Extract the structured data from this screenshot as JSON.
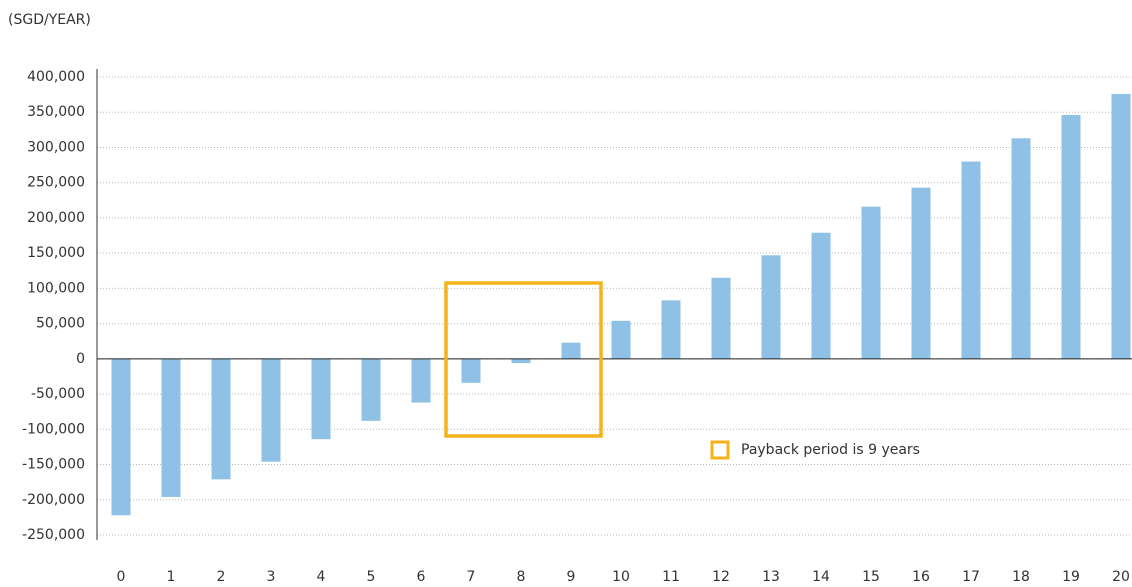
{
  "chart_data": {
    "type": "bar",
    "axis_title": "(SGD/YEAR)",
    "categories": [
      "0",
      "1",
      "2",
      "3",
      "4",
      "5",
      "6",
      "7",
      "8",
      "9",
      "10",
      "11",
      "12",
      "13",
      "14",
      "15",
      "16",
      "17",
      "18",
      "19",
      "20"
    ],
    "values": [
      -222000,
      -196000,
      -171000,
      -146000,
      -114000,
      -88000,
      -62000,
      -34000,
      -6000,
      23000,
      54000,
      83000,
      115000,
      147000,
      179000,
      216000,
      243000,
      280000,
      313000,
      346000,
      376000
    ],
    "color": "#8fc1e6",
    "ylim": [
      -250000,
      400000
    ],
    "yticks": [
      {
        "value": -250000,
        "label": "-250,000"
      },
      {
        "value": -200000,
        "label": "-200,000"
      },
      {
        "value": -150000,
        "label": "-150,000"
      },
      {
        "value": -100000,
        "label": "-100,000"
      },
      {
        "value": -50000,
        "label": "-50,000"
      },
      0,
      {
        "value": 50000,
        "label": "50,000"
      },
      {
        "value": 100000,
        "label": "100,000"
      },
      {
        "value": 150000,
        "label": "150,000"
      },
      {
        "value": 200000,
        "label": "200,000"
      },
      {
        "value": 250000,
        "label": "250,000"
      },
      {
        "value": 300000,
        "label": "300,000"
      },
      {
        "value": 350000,
        "label": "350,000"
      },
      {
        "value": 400000,
        "label": "400,000"
      }
    ],
    "grid": true,
    "annotation": {
      "text": "Payback period is 9 years",
      "color": "#f5b21a"
    }
  }
}
